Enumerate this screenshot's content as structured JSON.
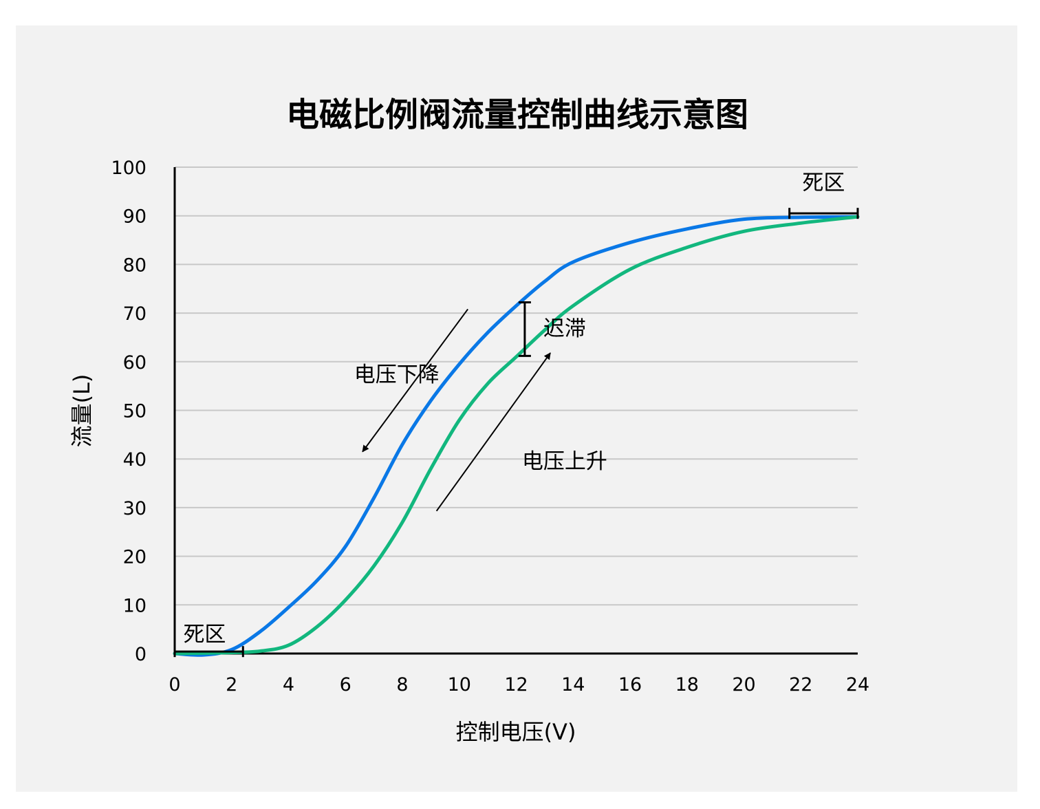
{
  "chart_data": {
    "type": "line",
    "title": "电磁比例阀流量控制曲线示意图",
    "xlabel": "控制电压(V)",
    "ylabel": "流量(L)",
    "xlim": [
      0,
      24
    ],
    "ylim": [
      0,
      100
    ],
    "xticks": [
      0,
      2,
      4,
      6,
      8,
      10,
      12,
      14,
      16,
      18,
      20,
      22,
      24
    ],
    "yticks": [
      0,
      10,
      20,
      30,
      40,
      50,
      60,
      70,
      80,
      90,
      100
    ],
    "grid": "horizontal",
    "colors": {
      "falling": "#0a78e6",
      "rising": "#12b77e",
      "grid": "#c8c8c8",
      "background": "#f2f2f2"
    },
    "series": [
      {
        "key": "falling",
        "color": "#0a78e6",
        "x": [
          0,
          1,
          2,
          3,
          4,
          5,
          6,
          7,
          8,
          9,
          10,
          11,
          12,
          13,
          14,
          16,
          18,
          20,
          22,
          24
        ],
        "y": [
          0,
          -0.3,
          0.8,
          4.5,
          9.5,
          15,
          22,
          32,
          43,
          52,
          59.5,
          66,
          71.5,
          76.5,
          80.5,
          84.5,
          87.3,
          89.3,
          89.7,
          89.8
        ]
      },
      {
        "key": "rising",
        "color": "#12b77e",
        "x": [
          0,
          2,
          3,
          4,
          5,
          6,
          7,
          8,
          9,
          10,
          11,
          12,
          13,
          14,
          16,
          18,
          20,
          22,
          24
        ],
        "y": [
          0,
          0.2,
          0.5,
          1.7,
          5.5,
          11,
          18,
          27,
          38,
          48,
          55.5,
          61,
          66.5,
          71.5,
          79,
          83.5,
          86.8,
          88.5,
          89.8
        ]
      }
    ],
    "annotations": [
      {
        "text": "电压下降",
        "x": 7.8,
        "y": 57.4
      },
      {
        "text": "电压上升",
        "x": 13.7,
        "y": 39.6
      },
      {
        "text": "迟滞",
        "x": 13.7,
        "y": 66.9
      },
      {
        "text": "死区",
        "x": 22.8,
        "y": 96.9
      },
      {
        "text": "死区",
        "x": 1.05,
        "y": 4
      }
    ],
    "arrows": [
      {
        "from": [
          10.3,
          70.8
        ],
        "to": [
          6.6,
          41.5
        ]
      },
      {
        "from": [
          9.2,
          29.3
        ],
        "to": [
          13.2,
          61.8
        ]
      }
    ],
    "hysteresis_bar": {
      "x": 12.3,
      "y0": 61.2,
      "y1": 72.2
    },
    "dead_zones": [
      {
        "x0": 0,
        "x1": 2.4,
        "y": 0.4
      },
      {
        "x0": 21.6,
        "x1": 24,
        "y": 90.5
      }
    ]
  }
}
